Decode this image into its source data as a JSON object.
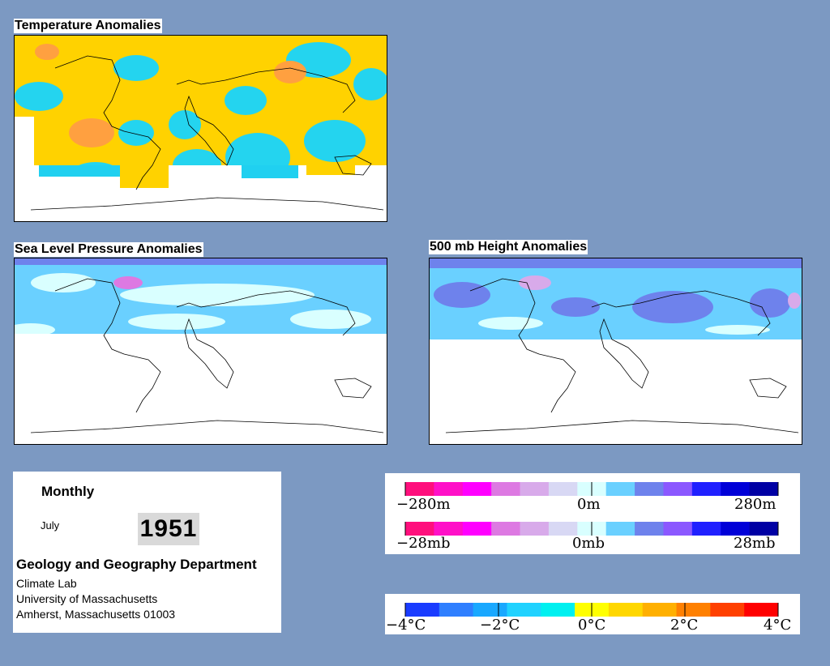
{
  "maps": {
    "temperature": {
      "title": "Temperature Anomalies"
    },
    "slp": {
      "title": "Sea Level Pressure Anomalies"
    },
    "height500": {
      "title": "500 mb Height Anomalies"
    }
  },
  "info": {
    "period": "Monthly",
    "month": "July",
    "year": "1951",
    "department": "Geology and Geography Department",
    "lab": "Climate Lab",
    "university": "University of Massachusetts",
    "address": "Amherst, Massachusetts 01003"
  },
  "legends": {
    "height": {
      "labels": [
        "−280m",
        "0m",
        "280m"
      ]
    },
    "pressure": {
      "labels": [
        "−28mb",
        "0mb",
        "28mb"
      ]
    },
    "temperature": {
      "labels": [
        "−4°C",
        "−2°C",
        "0°C",
        "2°C",
        "4°C"
      ]
    }
  },
  "colors": {
    "background": "#7c99c2",
    "pink_scale": [
      "#ff0f7d",
      "#ff10c8",
      "#ff00ff",
      "#dd79e2",
      "#d8aaea",
      "#d8d8f4",
      "#d9ffff"
    ],
    "blue_scale": [
      "#d9ffff",
      "#6ad0ff",
      "#6e82ec",
      "#8b58ff",
      "#2020ff",
      "#0000d8",
      "#0000a4"
    ],
    "temp_scale": [
      "#1a3cff",
      "#2f7fff",
      "#19a8ff",
      "#20d2ff",
      "#00f0f0",
      "#ffff00",
      "#ffd700",
      "#ffb000",
      "#ff8000",
      "#ff4000",
      "#ff0000"
    ]
  }
}
